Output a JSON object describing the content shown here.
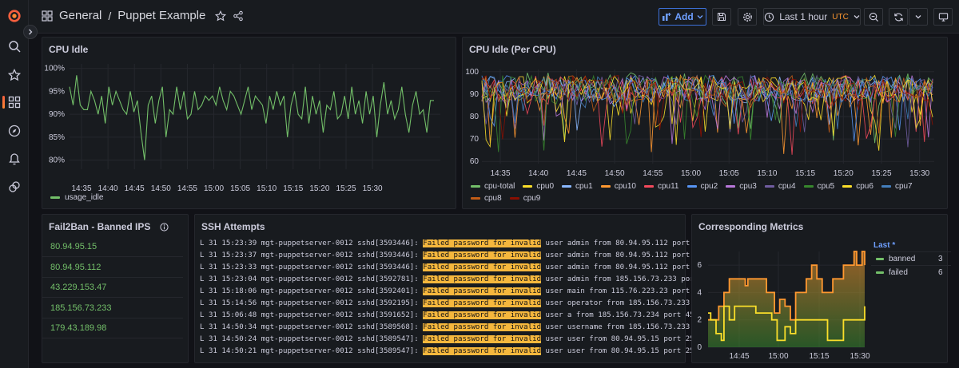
{
  "colors": {
    "green": "#73bf69",
    "yellow": "#fade2a",
    "orange": "#ff9830",
    "blue": "#5794f2",
    "red": "#f2495c",
    "purple": "#b877d9",
    "accent": "#6e9fff",
    "log_highlight": "#f5b73d"
  },
  "sidebar": {
    "items": [
      {
        "name": "grafana-logo-icon"
      },
      {
        "name": "search-icon"
      },
      {
        "name": "star-icon"
      },
      {
        "name": "dashboards-icon"
      },
      {
        "name": "explore-icon"
      },
      {
        "name": "alerting-icon"
      },
      {
        "name": "connections-icon"
      }
    ]
  },
  "header": {
    "folder": "General",
    "separator": "/",
    "title": "Puppet Example",
    "add_label": "Add",
    "time_range": "Last 1 hour",
    "timezone": "UTC"
  },
  "panels": {
    "cpu_idle": {
      "title": "CPU Idle",
      "legend": "usage_idle"
    },
    "cpu_idle_per_cpu": {
      "title": "CPU Idle (Per CPU)",
      "legend": [
        {
          "label": "cpu-total",
          "color": "#73bf69"
        },
        {
          "label": "cpu0",
          "color": "#fade2a"
        },
        {
          "label": "cpu1",
          "color": "#8ab8ff"
        },
        {
          "label": "cpu10",
          "color": "#ff9830"
        },
        {
          "label": "cpu11",
          "color": "#f2495c"
        },
        {
          "label": "cpu2",
          "color": "#5794f2"
        },
        {
          "label": "cpu3",
          "color": "#b877d9"
        },
        {
          "label": "cpu4",
          "color": "#705da0"
        },
        {
          "label": "cpu5",
          "color": "#37872d"
        },
        {
          "label": "cpu6",
          "color": "#fade2a"
        },
        {
          "label": "cpu7",
          "color": "#447ebc"
        },
        {
          "label": "cpu8",
          "color": "#c15c17"
        },
        {
          "label": "cpu9",
          "color": "#890f02"
        }
      ]
    },
    "fail2ban": {
      "title": "Fail2Ban - Banned IPS",
      "ips": [
        "80.94.95.15",
        "80.94.95.112",
        "43.229.153.47",
        "185.156.73.233",
        "179.43.189.98"
      ]
    },
    "ssh": {
      "title": "SSH Attempts",
      "highlight": "Failed password for invalid",
      "lines": [
        {
          "pre": "L 31 15:23:39 mgt-puppetserver-0012 sshd[3593446]: ",
          "post": " user admin from 80.94.95.112 port"
        },
        {
          "pre": "L 31 15:23:37 mgt-puppetserver-0012 sshd[3593446]: ",
          "post": " user admin from 80.94.95.112 port"
        },
        {
          "pre": "L 31 15:23:33 mgt-puppetserver-0012 sshd[3593446]: ",
          "post": " user admin from 80.94.95.112 port"
        },
        {
          "pre": "L 31 15:23:04 mgt-puppetserver-0012 sshd[3592781]: ",
          "post": " user admin from 185.156.73.233 port"
        },
        {
          "pre": "L 31 15:18:06 mgt-puppetserver-0012 sshd[3592401]: ",
          "post": " user main from 115.76.223.23 port"
        },
        {
          "pre": "L 31 15:14:56 mgt-puppetserver-0012 sshd[3592195]: ",
          "post": " user operator from 185.156.73.233"
        },
        {
          "pre": "L 31 15:06:48 mgt-puppetserver-0012 sshd[3591652]: ",
          "post": " user a from 185.156.73.234 port 45"
        },
        {
          "pre": "L 31 14:50:34 mgt-puppetserver-0012 sshd[3589568]: ",
          "post": " user username from 185.156.73.233"
        },
        {
          "pre": "L 31 14:50:24 mgt-puppetserver-0012 sshd[3589547]: ",
          "post": " user user from 80.94.95.15 port 25"
        },
        {
          "pre": "L 31 14:50:21 mgt-puppetserver-0012 sshd[3589547]: ",
          "post": " user user from 80.94.95.15 port 25"
        }
      ]
    },
    "metrics": {
      "title": "Corresponding Metrics",
      "legend_header": "Last *",
      "legend": [
        {
          "label": "banned",
          "value": "3",
          "color": "#73bf69"
        },
        {
          "label": "failed",
          "value": "6",
          "color": "#73bf69"
        }
      ]
    }
  },
  "chart_data": [
    {
      "type": "line",
      "title": "CPU Idle",
      "ylabel": "",
      "yticks": [
        "80%",
        "85%",
        "90%",
        "95%",
        "100%"
      ],
      "xticks": [
        "14:35",
        "14:40",
        "14:45",
        "14:50",
        "14:55",
        "15:00",
        "15:05",
        "15:10",
        "15:15",
        "15:20",
        "15:25",
        "15:30"
      ],
      "ylim": [
        78,
        101
      ],
      "series": [
        {
          "name": "usage_idle",
          "values": [
            96,
            92,
            98.5,
            92,
            91,
            91,
            95,
            93,
            90,
            94,
            88,
            96,
            92,
            95,
            93,
            91,
            90,
            95,
            90.5,
            93,
            86,
            80,
            92,
            94,
            88,
            93,
            96,
            85,
            91,
            90,
            96,
            91,
            95,
            89,
            90,
            95,
            91,
            92,
            94,
            93,
            94,
            92,
            96,
            93,
            91,
            95,
            94,
            92,
            90,
            93,
            96,
            91,
            94,
            93,
            92,
            88,
            94,
            91,
            95,
            92,
            94,
            85,
            92,
            95,
            90,
            89,
            96,
            88,
            94,
            90,
            93,
            86,
            92,
            91,
            95,
            89,
            90,
            94,
            89,
            96,
            90,
            93,
            88,
            95,
            90,
            94,
            85,
            92,
            97,
            90,
            93,
            89,
            91,
            96,
            90,
            86,
            92,
            95,
            90,
            91,
            86,
            93,
            93
          ]
        }
      ]
    },
    {
      "type": "line",
      "title": "CPU Idle (Per CPU)",
      "yticks": [
        "60",
        "70",
        "80",
        "90",
        "100"
      ],
      "xticks": [
        "14:35",
        "14:40",
        "14:45",
        "14:50",
        "14:55",
        "15:00",
        "15:05",
        "15:10",
        "15:15",
        "15:20",
        "15:25",
        "15:30"
      ],
      "ylim": [
        59,
        101
      ],
      "series_names": [
        "cpu-total",
        "cpu0",
        "cpu1",
        "cpu10",
        "cpu11",
        "cpu2",
        "cpu3",
        "cpu4",
        "cpu5",
        "cpu6",
        "cpu7",
        "cpu8",
        "cpu9"
      ],
      "note": "13 noisy series fluctuating between roughly 65 and 100"
    },
    {
      "type": "area",
      "title": "Corresponding Metrics",
      "yticks": [
        "0",
        "2",
        "4",
        "6"
      ],
      "xticks": [
        "14:45",
        "15:00",
        "15:15",
        "15:30"
      ],
      "ylim": [
        0,
        7
      ],
      "series": [
        {
          "name": "banned",
          "color": "#fade2a",
          "values": [
            2.5,
            2,
            2,
            1,
            1,
            0.5,
            3,
            3,
            2,
            2,
            3,
            3,
            3,
            3,
            3,
            3,
            3,
            3,
            2.5,
            2.5,
            2.5,
            2.5,
            2.5,
            2.5,
            2,
            2,
            0.5,
            0.5,
            0.5,
            1.5,
            1.5,
            1,
            1,
            2,
            2,
            2,
            2,
            2,
            2,
            2,
            2,
            2,
            2,
            2,
            2,
            0.5,
            0.5,
            0.5,
            0.5,
            0.5,
            0.5,
            2,
            2,
            2,
            2,
            2,
            2,
            2,
            2,
            3
          ]
        },
        {
          "name": "failed",
          "color": "#ff9830",
          "values": [
            2,
            2,
            2,
            2,
            3,
            3,
            4,
            4,
            5,
            5,
            5,
            5,
            5,
            5,
            4.5,
            5,
            5,
            5,
            5,
            5,
            5,
            5,
            4,
            4,
            4,
            2.5,
            2.5,
            3.5,
            3.5,
            3,
            3,
            2,
            2,
            4,
            4,
            4,
            4,
            5,
            5,
            6,
            6,
            5,
            5,
            4,
            4,
            4,
            4,
            5,
            5,
            5,
            5,
            6,
            6,
            6,
            6,
            7,
            6,
            6,
            7,
            6
          ]
        }
      ]
    }
  ]
}
